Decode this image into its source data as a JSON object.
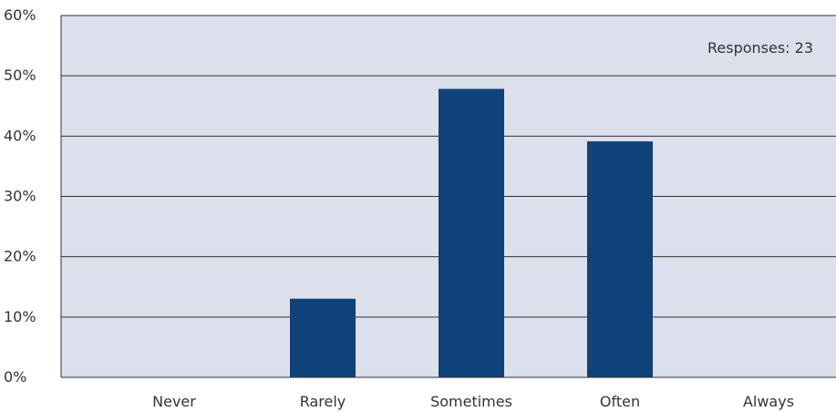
{
  "chart_data": {
    "type": "bar",
    "categories": [
      "Never",
      "Rarely",
      "Sometimes",
      "Often",
      "Always"
    ],
    "values": [
      0,
      13.04,
      47.83,
      39.13,
      0
    ],
    "ylim": [
      0,
      60
    ],
    "yticks": [
      0,
      10,
      20,
      30,
      40,
      50,
      60
    ],
    "ytick_labels": [
      "0%",
      "10%",
      "20%",
      "30%",
      "40%",
      "50%",
      "60%"
    ],
    "annotation": "Responses: 23",
    "grid": true,
    "bar_color": "#0f4278",
    "plot_background": "#dcdfec",
    "grid_color": "#333333"
  }
}
